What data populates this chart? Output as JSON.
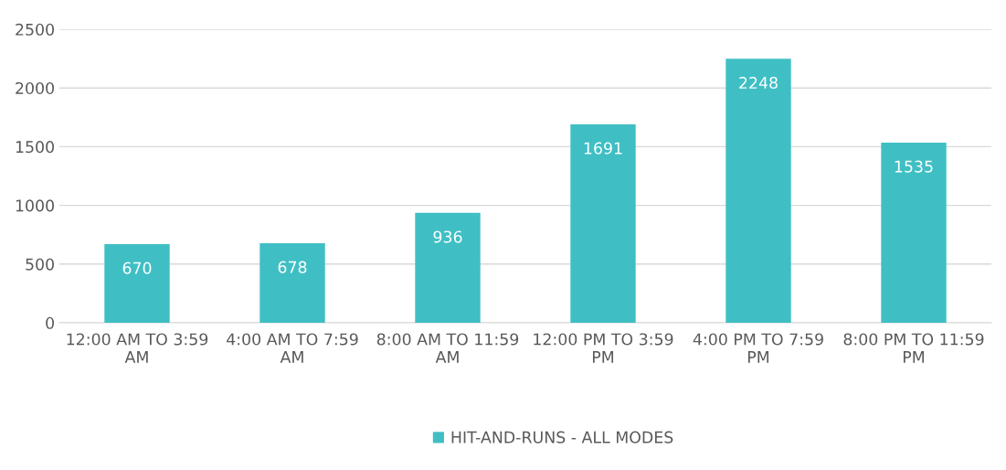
{
  "chart_data": {
    "type": "bar",
    "categories": [
      "12:00 AM TO 3:59 AM",
      "4:00 AM TO 7:59 AM",
      "8:00 AM TO 11:59 AM",
      "12:00 PM TO 3:59 PM",
      "4:00 PM TO 7:59 PM",
      "8:00 PM TO 11:59 PM"
    ],
    "series": [
      {
        "name": "HIT-AND-RUNS - ALL MODES",
        "color": "#3fbfc4",
        "values": [
          670,
          678,
          936,
          1691,
          2248,
          1535
        ]
      }
    ],
    "ylim": [
      0,
      2500
    ],
    "yticks": [
      0,
      500,
      1000,
      1500,
      2000,
      2500
    ],
    "grid": "y",
    "legend": "bottom",
    "data_labels": true
  }
}
